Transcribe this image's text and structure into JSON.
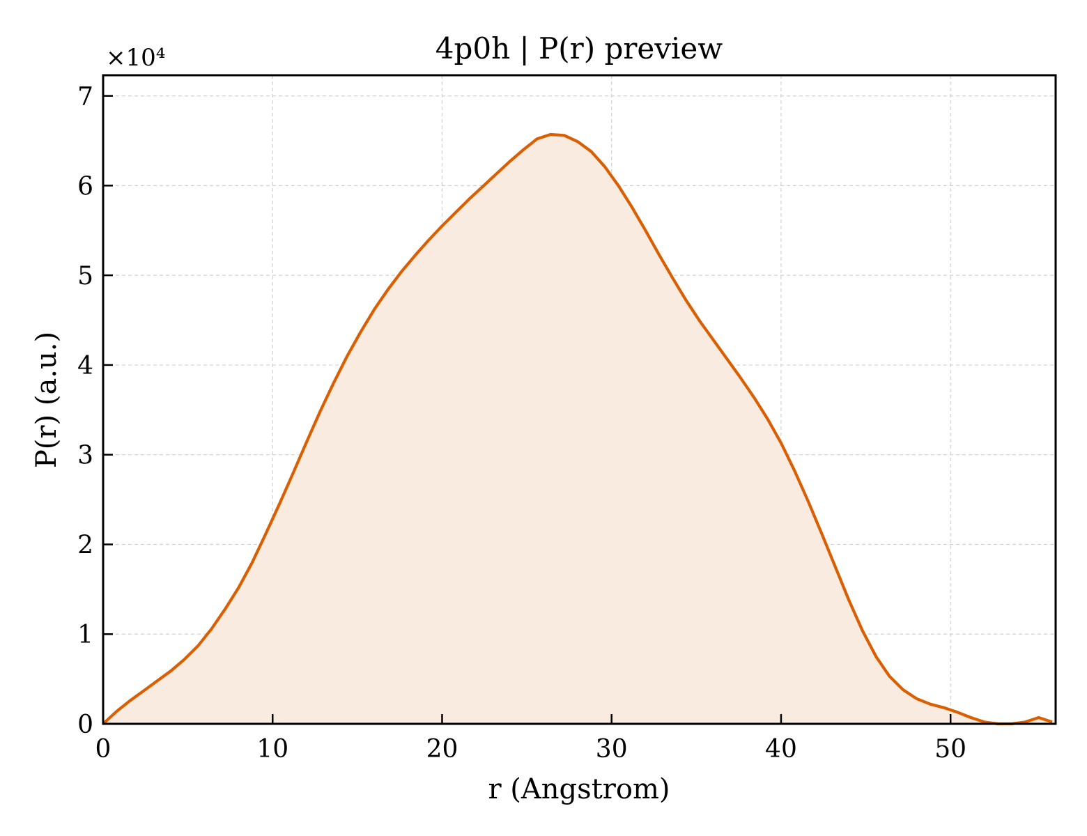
{
  "chart_data": {
    "type": "area",
    "title": "4p0h | P(r) preview",
    "xlabel": "r (Angstrom)",
    "ylabel": "P(r) (a.u.)",
    "y_offset_label": "×10⁴",
    "xlim": [
      0,
      56.2
    ],
    "ylim": [
      0,
      72300
    ],
    "x_ticks": [
      0,
      10,
      20,
      30,
      40,
      50
    ],
    "x_tick_labels": [
      "0",
      "10",
      "20",
      "30",
      "40",
      "50"
    ],
    "y_ticks": [
      0,
      10000,
      20000,
      30000,
      40000,
      50000,
      60000,
      70000
    ],
    "y_tick_labels": [
      "0",
      "1",
      "2",
      "3",
      "4",
      "5",
      "6",
      "7"
    ],
    "grid": true,
    "series": [
      {
        "color": "#d95f02",
        "fill_color": "#f9ebe0",
        "x": [
          0,
          0.8,
          1.6,
          2.4,
          3.2,
          4.0,
          4.8,
          5.6,
          6.4,
          7.2,
          8.0,
          8.8,
          9.6,
          10.4,
          11.2,
          12.0,
          12.8,
          13.6,
          14.4,
          15.2,
          16.0,
          16.8,
          17.6,
          18.4,
          19.2,
          20.0,
          20.8,
          21.6,
          22.4,
          23.2,
          24.0,
          24.8,
          25.6,
          26.4,
          27.2,
          28.0,
          28.8,
          29.6,
          30.4,
          31.2,
          32.0,
          32.8,
          33.6,
          34.4,
          35.2,
          36.0,
          36.8,
          37.6,
          38.4,
          39.2,
          40.0,
          40.8,
          41.6,
          42.4,
          43.2,
          44.0,
          44.8,
          45.6,
          46.4,
          47.2,
          48.0,
          48.8,
          49.6,
          50.4,
          51.2,
          52.0,
          52.8,
          53.6,
          54.4,
          55.2,
          56.0
        ],
        "y": [
          0,
          1400,
          2600,
          3700,
          4800,
          5900,
          7200,
          8700,
          10600,
          12800,
          15200,
          18000,
          21200,
          24500,
          27900,
          31400,
          34800,
          38000,
          41000,
          43700,
          46200,
          48400,
          50400,
          52200,
          53900,
          55500,
          57000,
          58500,
          59900,
          61300,
          62700,
          64000,
          65200,
          65700,
          65600,
          64900,
          63800,
          62100,
          60000,
          57600,
          55000,
          52300,
          49700,
          47200,
          44900,
          42800,
          40700,
          38600,
          36400,
          34000,
          31300,
          28200,
          24800,
          21200,
          17500,
          13800,
          10400,
          7500,
          5300,
          3800,
          2800,
          2200,
          1800,
          1300,
          700,
          200,
          -200,
          -100,
          200,
          700,
          200
        ]
      }
    ]
  }
}
